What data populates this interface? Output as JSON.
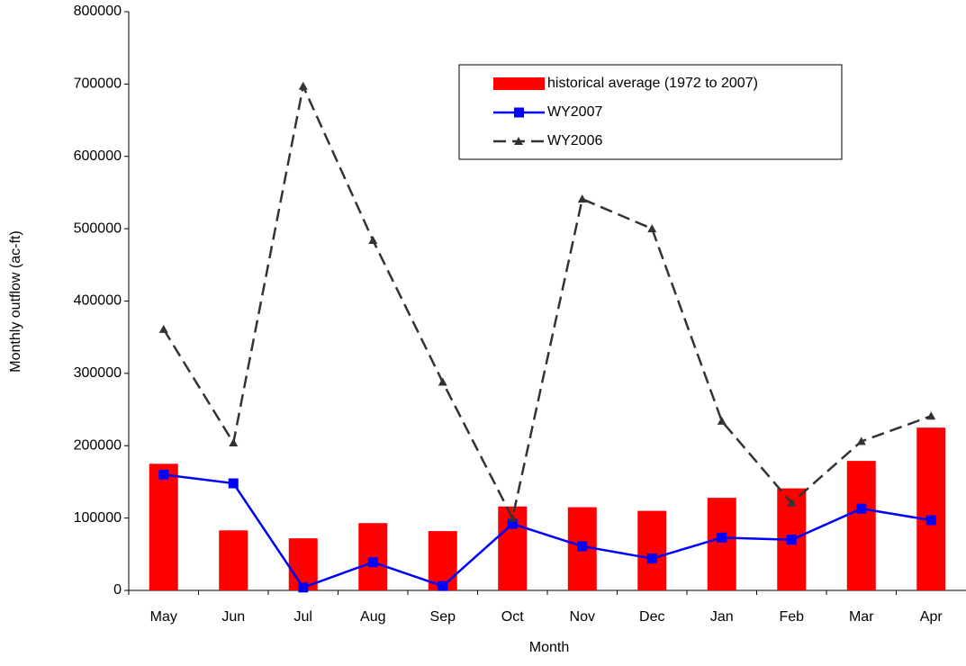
{
  "chart_data": {
    "type": "combo",
    "xlabel": "Month",
    "ylabel": "Monthly outflow (ac-ft)",
    "categories": [
      "May",
      "Jun",
      "Jul",
      "Aug",
      "Sep",
      "Oct",
      "Nov",
      "Dec",
      "Jan",
      "Feb",
      "Mar",
      "Apr"
    ],
    "series": [
      {
        "name": "historical average (1972 to 2007)",
        "type": "bar",
        "color": "#ff0000",
        "values": [
          175000,
          83000,
          72000,
          93000,
          82000,
          116000,
          115000,
          110000,
          128000,
          141000,
          179000,
          225000
        ]
      },
      {
        "name": "WY2007",
        "type": "line",
        "color": "#0000ff",
        "marker": "square",
        "dash": "solid",
        "values": [
          160000,
          148000,
          4000,
          39000,
          6000,
          92000,
          61000,
          44000,
          73000,
          70000,
          113000,
          97000
        ]
      },
      {
        "name": "WY2006",
        "type": "line",
        "color": "#333333",
        "marker": "triangle",
        "dash": "dashed",
        "values": [
          361000,
          204000,
          697000,
          484000,
          288000,
          100000,
          541000,
          500000,
          234000,
          121000,
          206000,
          241000
        ]
      }
    ],
    "ylim": [
      0,
      800000
    ],
    "yticks": [
      0,
      100000,
      200000,
      300000,
      400000,
      500000,
      600000,
      700000,
      800000
    ],
    "grid": false,
    "legend": "upper right"
  }
}
